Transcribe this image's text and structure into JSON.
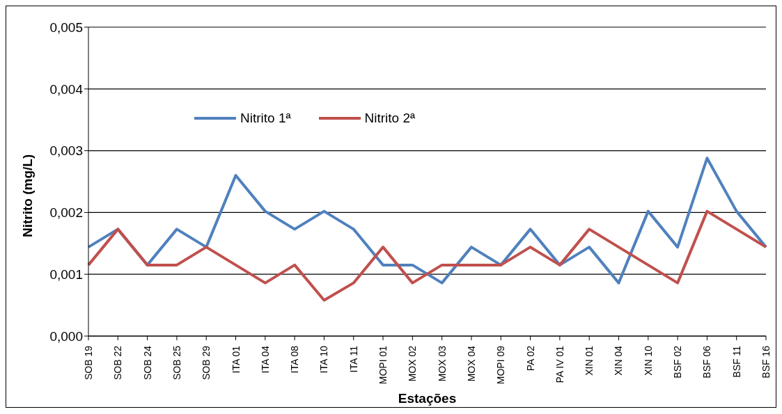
{
  "chart_data": {
    "type": "line",
    "xlabel": "Estações",
    "ylabel": "Nitrito (mg/L)",
    "categories": [
      "SOB 19",
      "SOB 22",
      "SOB 24",
      "SOB 25",
      "SOB 29",
      "ITA 01",
      "ITA 04",
      "ITA 08",
      "ITA 10",
      "ITA 11",
      "MOPI 01",
      "MOX 02",
      "MOX 03",
      "MOX 04",
      "MOPI 09",
      "PA 02",
      "PA IV 01",
      "XIN 01",
      "XIN 04",
      "XIN 10",
      "BSF 02",
      "BSF 06",
      "BSF 11",
      "BSF 16"
    ],
    "series": [
      {
        "name": "Nitrito 1ª",
        "color": "#4f81bd",
        "values": [
          0.00144,
          0.00173,
          0.00115,
          0.00173,
          0.00144,
          0.0026,
          0.00202,
          0.00173,
          0.00202,
          0.00173,
          0.00115,
          0.00115,
          0.00086,
          0.00144,
          0.00115,
          0.00173,
          0.00115,
          0.00144,
          0.00086,
          0.00202,
          0.00144,
          0.00288,
          0.00202,
          0.00144
        ]
      },
      {
        "name": "Nitrito 2ª",
        "color": "#c0504d",
        "values": [
          0.00115,
          0.00173,
          0.00115,
          0.00115,
          0.00144,
          0.00115,
          0.00086,
          0.00115,
          0.00058,
          0.00086,
          0.00144,
          0.00086,
          0.00115,
          0.00115,
          0.00115,
          0.00144,
          0.00115,
          0.00173,
          0.00144,
          0.00115,
          0.00086,
          0.00202,
          0.00173,
          0.00144
        ]
      }
    ],
    "ylim": [
      0,
      0.005
    ],
    "yticks": [
      {
        "value": 0,
        "label": "0,000"
      },
      {
        "value": 0.001,
        "label": "0,001"
      },
      {
        "value": 0.002,
        "label": "0,002"
      },
      {
        "value": 0.003,
        "label": "0,003"
      },
      {
        "value": 0.004,
        "label": "0,004"
      },
      {
        "value": 0.005,
        "label": "0,005"
      }
    ],
    "grid": "y",
    "legend": "top",
    "marker": "none",
    "line_style": "solid"
  }
}
